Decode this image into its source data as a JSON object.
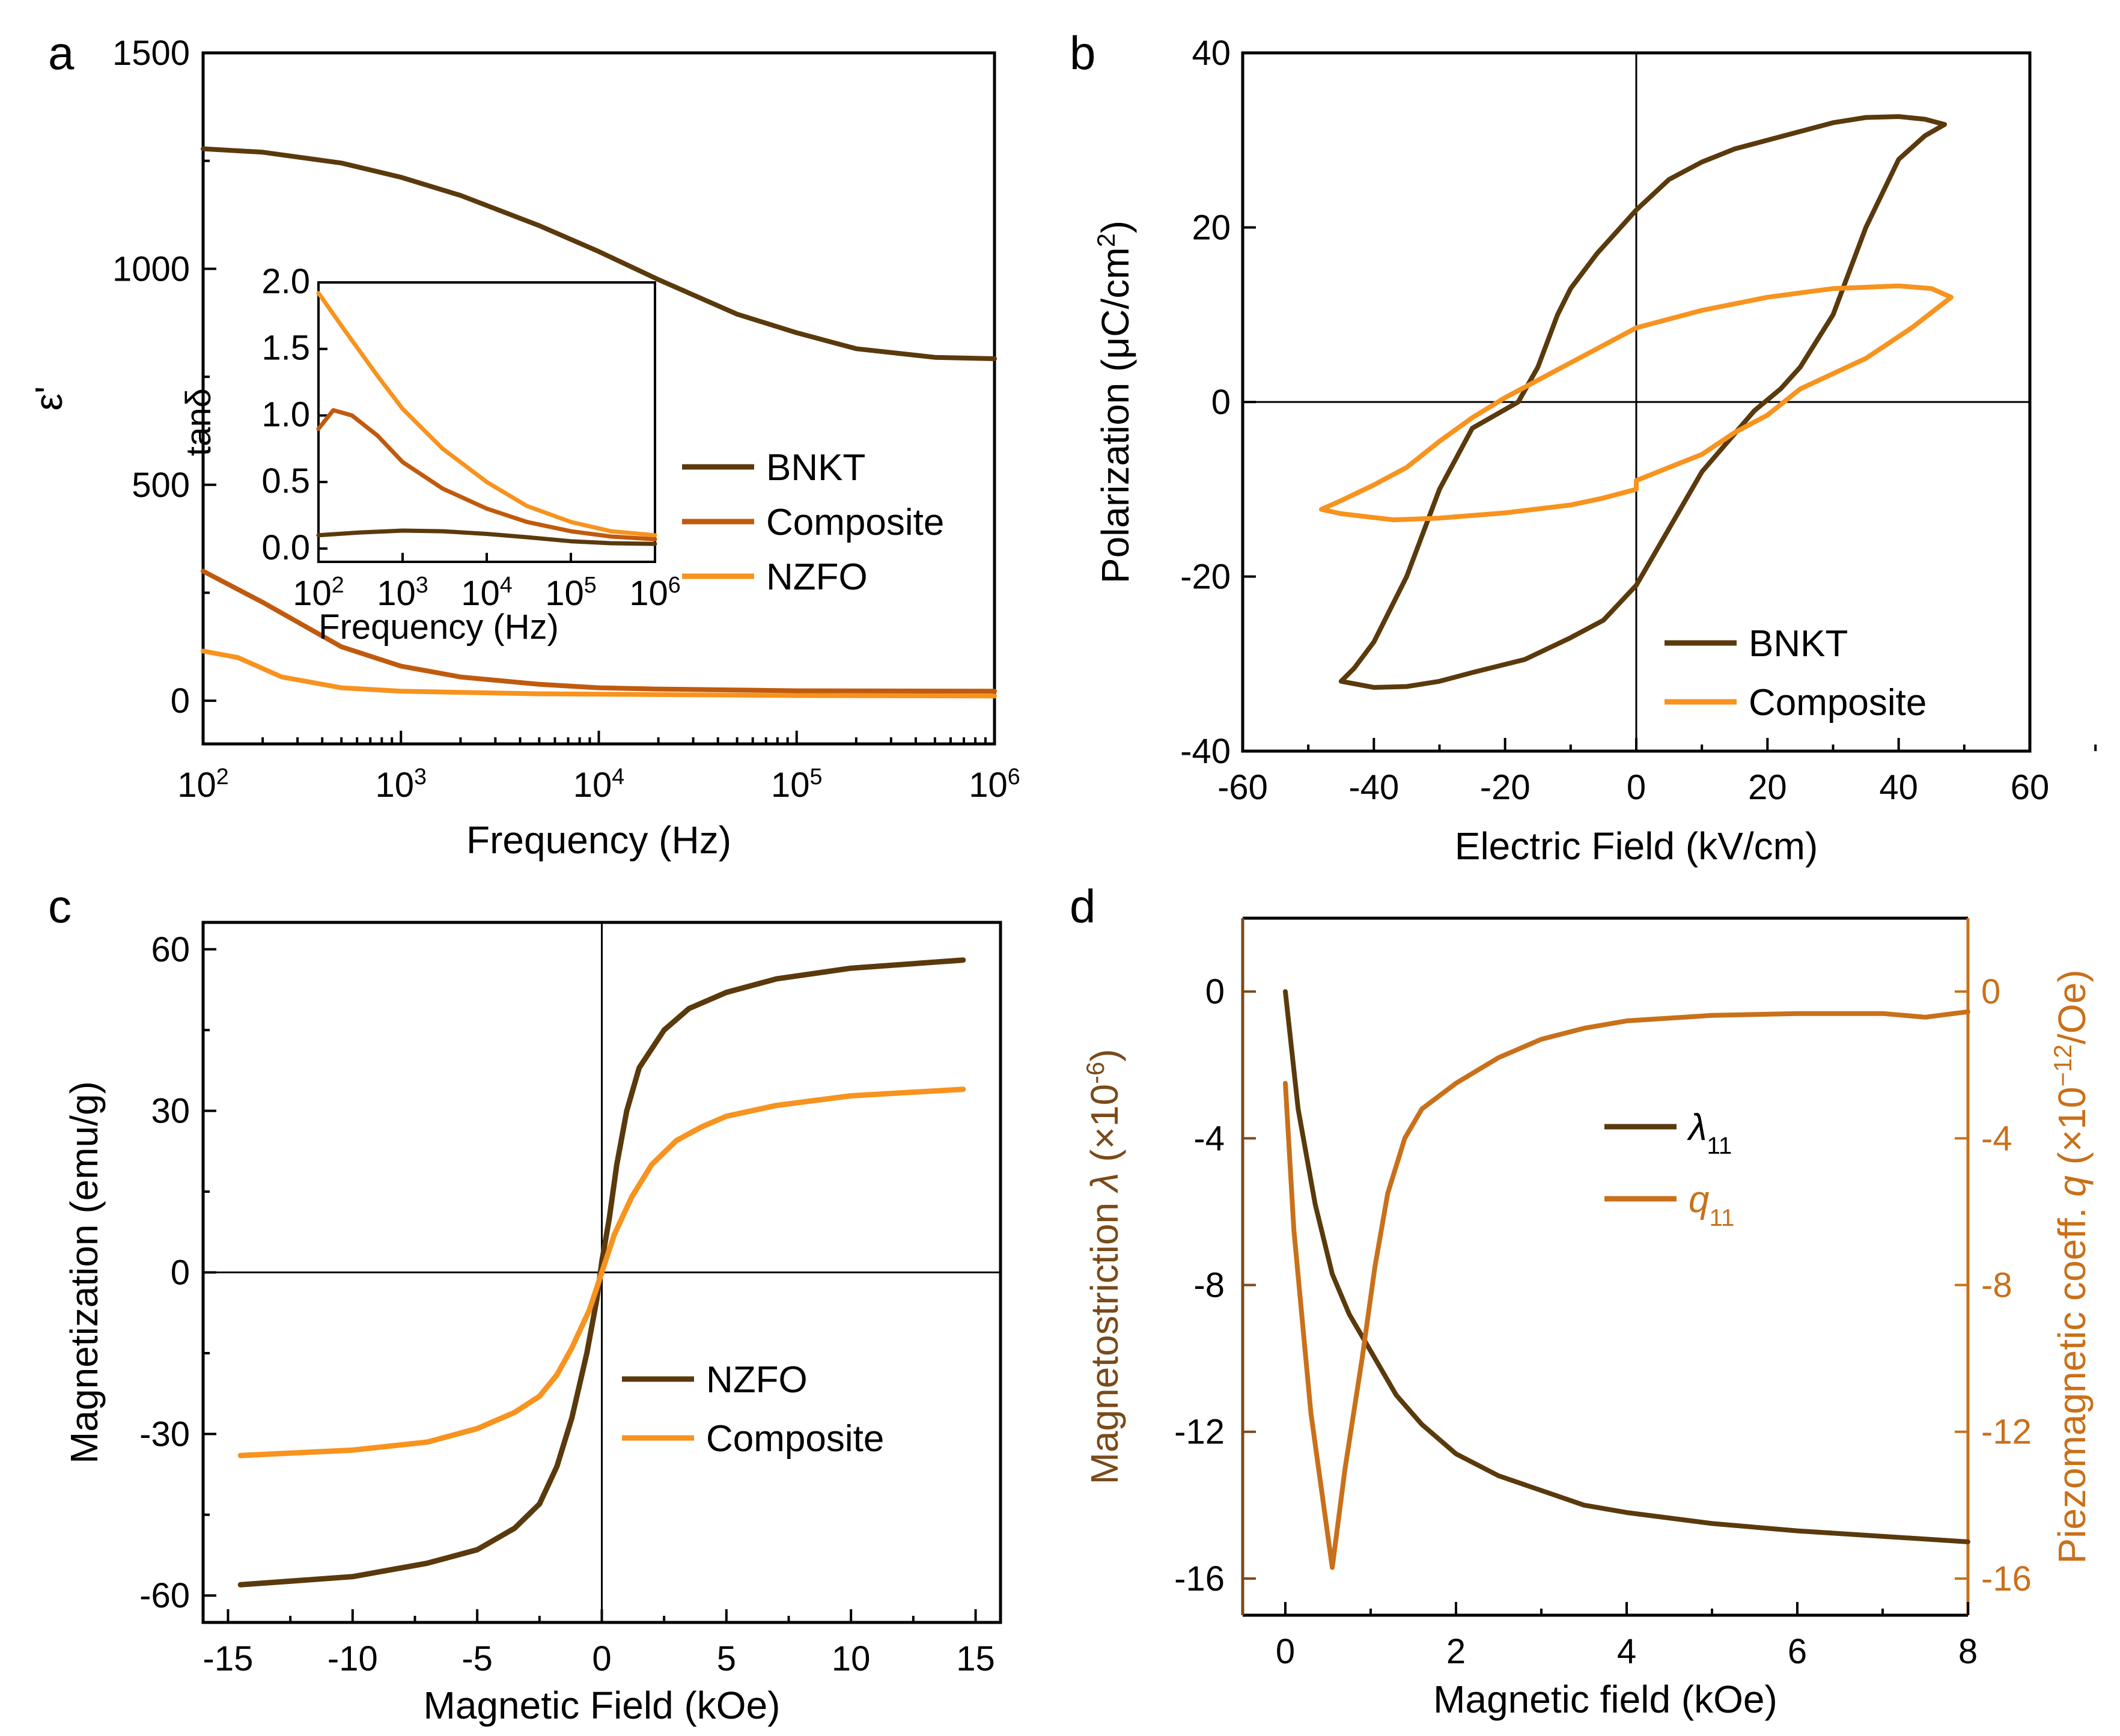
{
  "colors": {
    "bnkt": "#5a3a0c",
    "composite": "#c05a0e",
    "nzfo": "#f7931e",
    "lambda": "#5a3a0c",
    "q": "#c9701a",
    "axis": "#000000",
    "rightAxis": "#c9701a",
    "leftAxisD": "#7a4a1a"
  },
  "chart_data": [
    {
      "panel": "a",
      "type": "line",
      "xlabel": "Frequency (Hz)",
      "ylabel": "ε'",
      "xscale": "log",
      "xlim": [
        100,
        1000000
      ],
      "ylim": [
        -100,
        1500
      ],
      "xticks": [
        {
          "base": "10",
          "exp": "2"
        },
        {
          "base": "10",
          "exp": "3"
        },
        {
          "base": "10",
          "exp": "4"
        },
        {
          "base": "10",
          "exp": "5"
        },
        {
          "base": "10",
          "exp": "6"
        }
      ],
      "yticks": [
        "0",
        "500",
        "1000",
        "1500"
      ],
      "legend": [
        "BNKT",
        "Composite",
        "NZFO"
      ],
      "series": [
        {
          "name": "BNKT",
          "color_key": "bnkt",
          "points": [
            [
              100,
              1278
            ],
            [
              200,
              1270
            ],
            [
              500,
              1245
            ],
            [
              1000,
              1212
            ],
            [
              2000,
              1170
            ],
            [
              5000,
              1100
            ],
            [
              10000,
              1040
            ],
            [
              20000,
              975
            ],
            [
              50000,
              895
            ],
            [
              100000,
              852
            ],
            [
              200000,
              815
            ],
            [
              500000,
              795
            ],
            [
              1000000,
              792
            ]
          ]
        },
        {
          "name": "Composite",
          "color_key": "composite",
          "points": [
            [
              100,
              300
            ],
            [
              200,
              228
            ],
            [
              500,
              125
            ],
            [
              1000,
              80
            ],
            [
              2000,
              55
            ],
            [
              5000,
              38
            ],
            [
              10000,
              30
            ],
            [
              20000,
              27
            ],
            [
              100000,
              23
            ],
            [
              1000000,
              22
            ]
          ]
        },
        {
          "name": "NZFO",
          "color_key": "nzfo",
          "points": [
            [
              100,
              115
            ],
            [
              150,
              100
            ],
            [
              250,
              55
            ],
            [
              500,
              30
            ],
            [
              1000,
              22
            ],
            [
              5000,
              16
            ],
            [
              100000,
              12
            ],
            [
              1000000,
              11
            ]
          ]
        }
      ],
      "inset": {
        "type": "line",
        "xlabel": "Frequency (Hz)",
        "ylabel": "tanδ",
        "xscale": "log",
        "xlim": [
          100,
          1000000
        ],
        "ylim": [
          -0.1,
          2.0
        ],
        "xticks": [
          {
            "base": "10",
            "exp": "2"
          },
          {
            "base": "10",
            "exp": "3"
          },
          {
            "base": "10",
            "exp": "4"
          },
          {
            "base": "10",
            "exp": "5"
          },
          {
            "base": "10",
            "exp": "6"
          }
        ],
        "yticks": [
          "0.0",
          "0.5",
          "1.0",
          "1.5",
          "2.0"
        ],
        "series": [
          {
            "name": "BNKT",
            "color_key": "bnkt",
            "points": [
              [
                100,
                0.1
              ],
              [
                300,
                0.12
              ],
              [
                1000,
                0.135
              ],
              [
                3000,
                0.13
              ],
              [
                10000,
                0.11
              ],
              [
                30000,
                0.085
              ],
              [
                100000,
                0.055
              ],
              [
                300000,
                0.04
              ],
              [
                1000000,
                0.035
              ]
            ]
          },
          {
            "name": "Composite",
            "color_key": "composite",
            "points": [
              [
                100,
                0.9
              ],
              [
                150,
                1.04
              ],
              [
                250,
                1.0
              ],
              [
                500,
                0.85
              ],
              [
                1000,
                0.65
              ],
              [
                3000,
                0.45
              ],
              [
                10000,
                0.3
              ],
              [
                30000,
                0.2
              ],
              [
                100000,
                0.13
              ],
              [
                300000,
                0.09
              ],
              [
                1000000,
                0.07
              ]
            ]
          },
          {
            "name": "NZFO",
            "color_key": "nzfo",
            "points": [
              [
                100,
                1.92
              ],
              [
                200,
                1.65
              ],
              [
                500,
                1.3
              ],
              [
                1000,
                1.05
              ],
              [
                3000,
                0.75
              ],
              [
                10000,
                0.5
              ],
              [
                30000,
                0.32
              ],
              [
                100000,
                0.2
              ],
              [
                300000,
                0.13
              ],
              [
                1000000,
                0.1
              ]
            ]
          }
        ]
      }
    },
    {
      "panel": "b",
      "type": "line",
      "xlabel": "Electric Field (kV/cm)",
      "ylabel": "Polarization (μC/cm",
      "ylabel_sup": "2",
      "ylabel_end": ")",
      "xlim": [
        -60,
        60
      ],
      "ylim": [
        -40,
        40
      ],
      "xticks": [
        "-60",
        "-40",
        "-20",
        "0",
        "20",
        "40",
        "60"
      ],
      "yticks": [
        "-40",
        "-20",
        "0",
        "20",
        "40"
      ],
      "legend": [
        "BNKT",
        "Composite"
      ],
      "series": [
        {
          "name": "BNKT",
          "color_key": "bnkt",
          "points": [
            [
              0,
              22
            ],
            [
              5,
              25.5
            ],
            [
              10,
              27.5
            ],
            [
              15,
              29
            ],
            [
              20,
              30
            ],
            [
              25,
              31
            ],
            [
              30,
              32
            ],
            [
              35,
              32.6
            ],
            [
              40,
              32.7
            ],
            [
              44,
              32.4
            ],
            [
              47,
              31.8
            ],
            [
              44,
              30.5
            ],
            [
              40,
              27.8
            ],
            [
              35,
              20
            ],
            [
              30,
              10
            ],
            [
              25,
              4
            ],
            [
              22,
              1.5
            ],
            [
              18,
              -1
            ],
            [
              10,
              -8
            ],
            [
              0,
              -21
            ],
            [
              -5,
              -25
            ],
            [
              -10,
              -27
            ],
            [
              -17,
              -29.5
            ],
            [
              -25,
              -31
            ],
            [
              -30,
              -32
            ],
            [
              -35,
              -32.6
            ],
            [
              -40,
              -32.7
            ],
            [
              -45,
              -32
            ],
            [
              -43,
              -30.5
            ],
            [
              -40,
              -27.5
            ],
            [
              -35,
              -20
            ],
            [
              -30,
              -10
            ],
            [
              -25,
              -3
            ],
            [
              -18,
              0
            ],
            [
              -15,
              4
            ],
            [
              -12,
              10
            ],
            [
              -10,
              13
            ],
            [
              -6,
              17
            ],
            [
              -3,
              19.5
            ],
            [
              0,
              22
            ]
          ]
        },
        {
          "name": "Composite",
          "color_key": "nzfo",
          "points": [
            [
              0,
              8.5
            ],
            [
              10,
              10.5
            ],
            [
              20,
              12
            ],
            [
              30,
              13
            ],
            [
              40,
              13.3
            ],
            [
              45,
              13
            ],
            [
              48,
              12
            ],
            [
              42,
              8.5
            ],
            [
              35,
              5
            ],
            [
              25,
              1.5
            ],
            [
              20,
              -1.5
            ],
            [
              15,
              -3.5
            ],
            [
              10,
              -6
            ],
            [
              5,
              -7.5
            ],
            [
              0,
              -9
            ],
            [
              0,
              -10
            ],
            [
              -5,
              -11
            ],
            [
              -10,
              -11.8
            ],
            [
              -20,
              -12.7
            ],
            [
              -30,
              -13.3
            ],
            [
              -37,
              -13.5
            ],
            [
              -45,
              -12.8
            ],
            [
              -48,
              -12.3
            ],
            [
              -45,
              -11.3
            ],
            [
              -40,
              -9.5
            ],
            [
              -35,
              -7.5
            ],
            [
              -30,
              -4.5
            ],
            [
              -25,
              -1.8
            ],
            [
              -20,
              0.5
            ],
            [
              -15,
              2.5
            ],
            [
              -10,
              4.5
            ],
            [
              -5,
              6.5
            ],
            [
              0,
              8.5
            ]
          ]
        }
      ]
    },
    {
      "panel": "c",
      "type": "line",
      "xlabel": "Magnetic Field (kOe)",
      "ylabel": "Magnetization (emu/g)",
      "xlim": [
        -16,
        16
      ],
      "ylim": [
        -65,
        65
      ],
      "xticks": [
        "-15",
        "-10",
        "-5",
        "0",
        "5",
        "10",
        "15"
      ],
      "yticks": [
        "-60",
        "-30",
        "0",
        "30",
        "60"
      ],
      "legend": [
        "NZFO",
        "Composite"
      ],
      "series": [
        {
          "name": "NZFO",
          "color_key": "bnkt",
          "points": [
            [
              -14.5,
              -58
            ],
            [
              -10,
              -56.5
            ],
            [
              -7,
              -54
            ],
            [
              -5,
              -51.5
            ],
            [
              -3.5,
              -47.5
            ],
            [
              -2.5,
              -43
            ],
            [
              -1.8,
              -36
            ],
            [
              -1.2,
              -27
            ],
            [
              -0.6,
              -15
            ],
            [
              -0.2,
              -5
            ],
            [
              0,
              2
            ],
            [
              0.3,
              10
            ],
            [
              0.6,
              20
            ],
            [
              1,
              30
            ],
            [
              1.5,
              38
            ],
            [
              2.5,
              45
            ],
            [
              3.5,
              49
            ],
            [
              5,
              52
            ],
            [
              7,
              54.5
            ],
            [
              10,
              56.5
            ],
            [
              14.5,
              58
            ]
          ]
        },
        {
          "name": "Composite",
          "color_key": "nzfo",
          "points": [
            [
              -14.5,
              -34
            ],
            [
              -10,
              -33
            ],
            [
              -7,
              -31.5
            ],
            [
              -5,
              -29
            ],
            [
              -3.5,
              -26
            ],
            [
              -2.5,
              -23
            ],
            [
              -1.8,
              -19
            ],
            [
              -1.2,
              -14
            ],
            [
              -0.5,
              -7
            ],
            [
              0,
              0
            ],
            [
              0.5,
              7
            ],
            [
              1.2,
              14
            ],
            [
              2,
              20
            ],
            [
              3,
              24.5
            ],
            [
              4,
              27
            ],
            [
              5,
              29
            ],
            [
              7,
              31
            ],
            [
              10,
              32.8
            ],
            [
              14.5,
              34
            ]
          ]
        }
      ]
    },
    {
      "panel": "d",
      "type": "line",
      "xlabel": "Magnetic field (kOe)",
      "ylabel": "Magnetostriction λ (×10",
      "ylabel_sup": "-6",
      "ylabel_end": ")",
      "ylabel2": "Piezomagnetic coeff. q (×10",
      "ylabel2_sup": "−12",
      "ylabel2_end": "/Oe)",
      "xlim": [
        -0.5,
        8
      ],
      "ylim": [
        -17,
        2
      ],
      "ylim2": [
        -17,
        2
      ],
      "xticks": [
        "0",
        "2",
        "4",
        "6",
        "8"
      ],
      "yticks": [
        "-16",
        "-12",
        "-8",
        "-4",
        "0"
      ],
      "yticks2": [
        "-16",
        "-12",
        "-8",
        "-4",
        "0"
      ],
      "legend": [
        {
          "sym": "λ",
          "sub": "11"
        },
        {
          "sym": "q",
          "sub": "11"
        }
      ],
      "series": [
        {
          "name": "λ11",
          "color_key": "lambda",
          "axis": "left",
          "points": [
            [
              0,
              0
            ],
            [
              0.15,
              -3.2
            ],
            [
              0.35,
              -5.8
            ],
            [
              0.55,
              -7.7
            ],
            [
              0.75,
              -8.8
            ],
            [
              1,
              -9.8
            ],
            [
              1.3,
              -11
            ],
            [
              1.6,
              -11.8
            ],
            [
              2,
              -12.6
            ],
            [
              2.5,
              -13.2
            ],
            [
              3,
              -13.6
            ],
            [
              3.5,
              -14
            ],
            [
              4,
              -14.2
            ],
            [
              5,
              -14.5
            ],
            [
              6,
              -14.7
            ],
            [
              7,
              -14.85
            ],
            [
              8,
              -15
            ]
          ]
        },
        {
          "name": "q11",
          "color_key": "q",
          "axis": "right",
          "points": [
            [
              0,
              -2.5
            ],
            [
              0.1,
              -6.5
            ],
            [
              0.3,
              -11.5
            ],
            [
              0.55,
              -15.7
            ],
            [
              0.7,
              -13
            ],
            [
              0.9,
              -10
            ],
            [
              1.05,
              -7.5
            ],
            [
              1.2,
              -5.5
            ],
            [
              1.4,
              -4
            ],
            [
              1.6,
              -3.2
            ],
            [
              2,
              -2.5
            ],
            [
              2.5,
              -1.8
            ],
            [
              3,
              -1.3
            ],
            [
              3.5,
              -1
            ],
            [
              4,
              -0.8
            ],
            [
              5,
              -0.65
            ],
            [
              6,
              -0.6
            ],
            [
              7,
              -0.6
            ],
            [
              7.5,
              -0.7
            ],
            [
              8,
              -0.55
            ]
          ]
        }
      ]
    }
  ]
}
